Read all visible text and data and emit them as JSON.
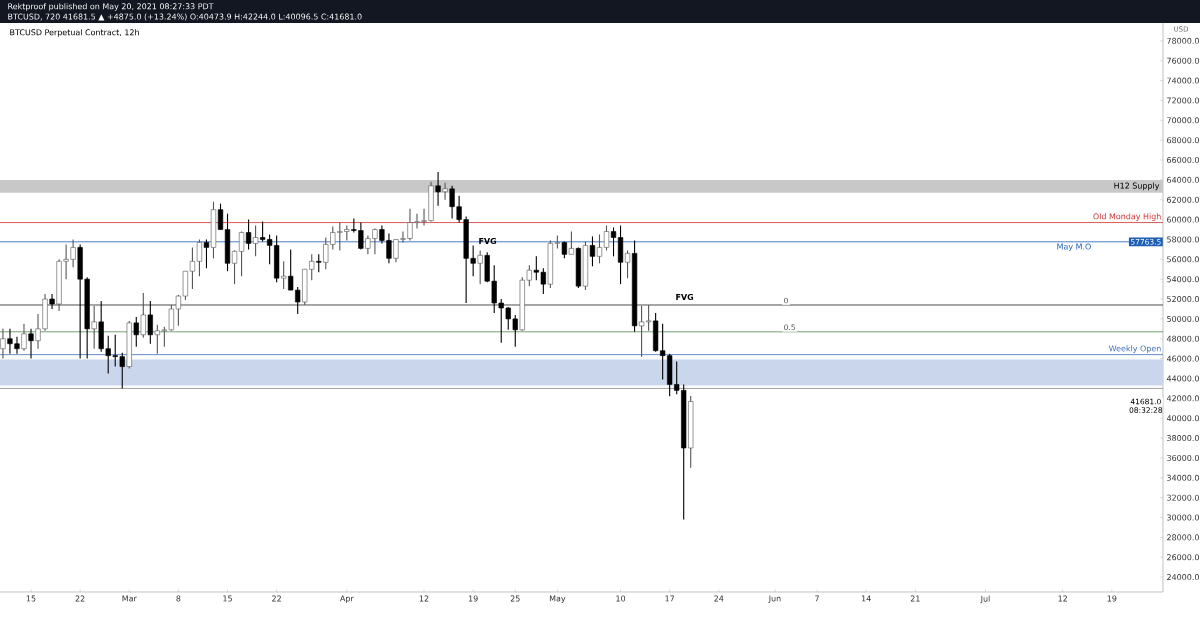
{
  "chart_data": {
    "type": "candlestick",
    "title": "BTCUSD Perpetual Contract, 12h",
    "x": [
      "2021-02-11",
      "2021-02-12",
      "2021-02-13",
      "2021-02-14",
      "2021-02-15",
      "2021-02-16",
      "2021-02-17",
      "2021-02-18",
      "2021-02-19",
      "2021-02-20",
      "2021-02-21",
      "2021-02-22",
      "2021-02-23",
      "2021-02-24",
      "2021-02-25",
      "2021-02-26",
      "2021-02-27",
      "2021-02-28",
      "2021-03-01",
      "2021-03-02",
      "2021-03-03",
      "2021-03-04",
      "2021-03-05",
      "2021-03-06",
      "2021-03-07",
      "2021-03-08",
      "2021-03-09",
      "2021-03-10",
      "2021-03-11",
      "2021-03-12",
      "2021-03-13",
      "2021-03-14",
      "2021-03-15",
      "2021-03-16",
      "2021-03-17",
      "2021-03-18",
      "2021-03-19",
      "2021-03-20",
      "2021-03-21",
      "2021-03-22",
      "2021-03-23",
      "2021-03-24",
      "2021-03-25",
      "2021-03-26",
      "2021-03-27",
      "2021-03-28",
      "2021-03-29",
      "2021-03-30",
      "2021-03-31",
      "2021-04-01",
      "2021-04-02",
      "2021-04-03",
      "2021-04-04",
      "2021-04-05",
      "2021-04-06",
      "2021-04-07",
      "2021-04-08",
      "2021-04-09",
      "2021-04-10",
      "2021-04-11",
      "2021-04-12",
      "2021-04-13",
      "2021-04-14",
      "2021-04-15",
      "2021-04-16",
      "2021-04-17",
      "2021-04-18",
      "2021-04-19",
      "2021-04-20",
      "2021-04-21",
      "2021-04-22",
      "2021-04-23",
      "2021-04-24",
      "2021-04-25",
      "2021-04-26",
      "2021-04-27",
      "2021-04-28",
      "2021-04-29",
      "2021-04-30",
      "2021-05-01",
      "2021-05-02",
      "2021-05-03",
      "2021-05-04",
      "2021-05-05",
      "2021-05-06",
      "2021-05-07",
      "2021-05-08",
      "2021-05-09",
      "2021-05-10",
      "2021-05-11",
      "2021-05-12",
      "2021-05-13",
      "2021-05-14",
      "2021-05-15",
      "2021-05-16",
      "2021-05-17",
      "2021-05-18",
      "2021-05-19",
      "2021-05-20"
    ],
    "ohlc": [
      [
        47000,
        49000,
        46000,
        48000
      ],
      [
        48000,
        49000,
        46500,
        47500
      ],
      [
        47500,
        48200,
        46500,
        47000
      ],
      [
        47000,
        49500,
        46800,
        48500
      ],
      [
        48500,
        49000,
        46000,
        47800
      ],
      [
        47800,
        50500,
        47000,
        49000
      ],
      [
        49000,
        52500,
        48800,
        52000
      ],
      [
        52000,
        52500,
        51000,
        51500
      ],
      [
        51500,
        56000,
        50800,
        55800
      ],
      [
        55800,
        57500,
        54000,
        56000
      ],
      [
        56000,
        58000,
        55200,
        57200
      ],
      [
        57200,
        57500,
        46000,
        54000
      ],
      [
        54000,
        54200,
        46000,
        49000
      ],
      [
        49000,
        51300,
        47000,
        49700
      ],
      [
        49700,
        51800,
        46700,
        47000
      ],
      [
        47000,
        48300,
        44500,
        46300
      ],
      [
        46300,
        48400,
        45200,
        46200
      ],
      [
        46200,
        46600,
        43000,
        45200
      ],
      [
        45200,
        49800,
        45000,
        49600
      ],
      [
        49600,
        50200,
        47200,
        48400
      ],
      [
        48400,
        52600,
        48100,
        50400
      ],
      [
        50400,
        51800,
        47500,
        48400
      ],
      [
        48400,
        49400,
        46500,
        48800
      ],
      [
        48800,
        49200,
        47200,
        48900
      ],
      [
        48900,
        51400,
        48800,
        51000
      ],
      [
        51000,
        52400,
        49300,
        52300
      ],
      [
        52300,
        54800,
        51900,
        54800
      ],
      [
        54800,
        57200,
        53000,
        55800
      ],
      [
        55800,
        58000,
        54300,
        57700
      ],
      [
        57700,
        58000,
        55100,
        57200
      ],
      [
        57200,
        61800,
        56100,
        61000
      ],
      [
        61000,
        61600,
        59000,
        59000
      ],
      [
        59000,
        60600,
        54800,
        55600
      ],
      [
        55600,
        56900,
        53500,
        56800
      ],
      [
        56800,
        58800,
        54300,
        58700
      ],
      [
        58700,
        60000,
        57000,
        57600
      ],
      [
        57600,
        59400,
        56300,
        58200
      ],
      [
        58200,
        59800,
        57800,
        58000
      ],
      [
        58000,
        58500,
        55500,
        57400
      ],
      [
        57400,
        58400,
        53700,
        54100
      ],
      [
        54100,
        55800,
        53000,
        54300
      ],
      [
        54300,
        57000,
        52900,
        52900
      ],
      [
        52900,
        53200,
        50500,
        51700
      ],
      [
        51700,
        55000,
        51400,
        55000
      ],
      [
        55000,
        56500,
        53900,
        55800
      ],
      [
        55800,
        56500,
        54700,
        55700
      ],
      [
        55700,
        58200,
        55000,
        57500
      ],
      [
        57500,
        59300,
        57000,
        58700
      ],
      [
        58700,
        59700,
        56900,
        58800
      ],
      [
        58800,
        59400,
        57900,
        59000
      ],
      [
        59000,
        60100,
        58700,
        58900
      ],
      [
        58900,
        59700,
        57000,
        57100
      ],
      [
        57100,
        58400,
        56500,
        58100
      ],
      [
        58100,
        59100,
        56500,
        59000
      ],
      [
        59000,
        59400,
        57600,
        57900
      ],
      [
        57900,
        58600,
        55600,
        56100
      ],
      [
        56100,
        58000,
        55700,
        58000
      ],
      [
        58000,
        58800,
        57700,
        58100
      ],
      [
        58100,
        61100,
        57900,
        59700
      ],
      [
        59700,
        60600,
        59100,
        59800
      ],
      [
        59800,
        61100,
        59400,
        59900
      ],
      [
        59900,
        63800,
        59800,
        63400
      ],
      [
        63400,
        64800,
        61400,
        62800
      ],
      [
        62800,
        63700,
        62000,
        63100
      ],
      [
        63100,
        63400,
        60100,
        61300
      ],
      [
        61300,
        62400,
        59700,
        60000
      ],
      [
        60000,
        60300,
        51600,
        56100
      ],
      [
        56100,
        57400,
        54300,
        55600
      ],
      [
        55600,
        56900,
        53500,
        56400
      ],
      [
        56400,
        56700,
        53700,
        53800
      ],
      [
        53800,
        55400,
        50600,
        51600
      ],
      [
        51600,
        52000,
        47600,
        51100
      ],
      [
        51100,
        51200,
        48900,
        50000
      ],
      [
        50000,
        50400,
        47200,
        48900
      ],
      [
        48900,
        54200,
        48800,
        53900
      ],
      [
        53900,
        55400,
        53300,
        54900
      ],
      [
        54900,
        56300,
        53900,
        54700
      ],
      [
        54700,
        55100,
        52500,
        53500
      ],
      [
        53500,
        57900,
        53100,
        57600
      ],
      [
        57600,
        58400,
        57100,
        57700
      ],
      [
        57700,
        57800,
        56100,
        56500
      ],
      [
        56500,
        58800,
        56500,
        57100
      ],
      [
        57100,
        57200,
        53100,
        53300
      ],
      [
        53300,
        57800,
        52900,
        57400
      ],
      [
        57400,
        58300,
        55300,
        56300
      ],
      [
        56300,
        58500,
        55600,
        57200
      ],
      [
        57200,
        59400,
        56900,
        58800
      ],
      [
        58800,
        59200,
        56300,
        58200
      ],
      [
        58200,
        59400,
        53500,
        55700
      ],
      [
        55700,
        56900,
        54100,
        56600
      ],
      [
        56600,
        57900,
        48700,
        49300
      ],
      [
        49300,
        51300,
        46200,
        49700
      ],
      [
        49700,
        51400,
        48800,
        49800
      ],
      [
        49800,
        50600,
        46700,
        46800
      ],
      [
        46800,
        49500,
        43900,
        46300
      ],
      [
        46300,
        46500,
        42200,
        43400
      ],
      [
        43400,
        45700,
        42400,
        42800
      ],
      [
        42800,
        43400,
        29800,
        37000
      ],
      [
        37000,
        42244,
        35000,
        41681
      ]
    ],
    "xlim": [
      "2021-02-10T14:00",
      "2021-07-26T07:00"
    ],
    "xticks": [
      {
        "value": "2021-02-15",
        "label": "15"
      },
      {
        "value": "2021-02-22",
        "label": "22"
      },
      {
        "value": "2021-03-01",
        "label": "Mar"
      },
      {
        "value": "2021-03-08",
        "label": "8"
      },
      {
        "value": "2021-03-15",
        "label": "15"
      },
      {
        "value": "2021-03-22",
        "label": "22"
      },
      {
        "value": "2021-04-01",
        "label": "Apr"
      },
      {
        "value": "2021-04-12",
        "label": "12"
      },
      {
        "value": "2021-04-19",
        "label": "19"
      },
      {
        "value": "2021-04-25",
        "label": "25"
      },
      {
        "value": "2021-05-01",
        "label": "May"
      },
      {
        "value": "2021-05-10",
        "label": "10"
      },
      {
        "value": "2021-05-17",
        "label": "17"
      },
      {
        "value": "2021-05-24",
        "label": "24"
      },
      {
        "value": "2021-06-01",
        "label": "Jun"
      },
      {
        "value": "2021-06-07",
        "label": "7"
      },
      {
        "value": "2021-06-14",
        "label": "14"
      },
      {
        "value": "2021-06-21",
        "label": "21"
      },
      {
        "value": "2021-07-01",
        "label": "Jul"
      },
      {
        "value": "2021-07-12",
        "label": "12"
      },
      {
        "value": "2021-07-19",
        "label": "19"
      }
    ],
    "ylim": [
      22500,
      79900
    ],
    "yticks": [
      {
        "value": 24000,
        "label": "24000.0"
      },
      {
        "value": 26000,
        "label": "26000.0"
      },
      {
        "value": 28000,
        "label": "28000.0"
      },
      {
        "value": 30000,
        "label": "30000.0"
      },
      {
        "value": 32000,
        "label": "32000.0"
      },
      {
        "value": 34000,
        "label": "34000.0"
      },
      {
        "value": 36000,
        "label": "36000.0"
      },
      {
        "value": 38000,
        "label": "38000.0"
      },
      {
        "value": 40000,
        "label": "40000.0"
      },
      {
        "value": 42000,
        "label": "42000.0"
      },
      {
        "value": 44000,
        "label": "44000.0"
      },
      {
        "value": 46000,
        "label": "46000.0"
      },
      {
        "value": 48000,
        "label": "48000.0"
      },
      {
        "value": 50000,
        "label": "50000.0"
      },
      {
        "value": 52000,
        "label": "52000.0"
      },
      {
        "value": 54000,
        "label": "54000.0"
      },
      {
        "value": 56000,
        "label": "56000.0"
      },
      {
        "value": 58000,
        "label": "58000.0"
      },
      {
        "value": 60000,
        "label": "60000.0"
      },
      {
        "value": 62000,
        "label": "62000.0"
      },
      {
        "value": 64000,
        "label": "64000.0"
      },
      {
        "value": 66000,
        "label": "66000.0"
      },
      {
        "value": 68000,
        "label": "68000.0"
      },
      {
        "value": 70000,
        "label": "70000.0"
      },
      {
        "value": 72000,
        "label": "72000.0"
      },
      {
        "value": 74000,
        "label": "74000.0"
      },
      {
        "value": 76000,
        "label": "76000.0"
      },
      {
        "value": 78000,
        "label": "78000.0"
      }
    ],
    "bands": [
      {
        "axis": "y",
        "from": 62700,
        "to": 64000,
        "label": "H12 Supply",
        "color": "#c8c8c8"
      },
      {
        "axis": "y",
        "from": 43300,
        "to": 45900,
        "color": "#c9d6ec"
      }
    ],
    "ref_lines": [
      {
        "axis": "y",
        "value": 59700,
        "label": "Old Monday High",
        "color": "#d32f2f"
      },
      {
        "axis": "y",
        "value": 57763.5,
        "label": "May M.O",
        "color": "#1e5fb4"
      },
      {
        "axis": "y",
        "value": 51400,
        "color": "#222222"
      },
      {
        "axis": "y",
        "value": 48700,
        "color": "#4e8a4e"
      },
      {
        "axis": "y",
        "value": 46400,
        "label": "Weekly Open",
        "color": "#3f6fbf"
      },
      {
        "axis": "y",
        "value": 43000,
        "color": "#888888"
      }
    ],
    "annotations": [
      "Rektproof published on May 20, 2021 08:27:33 PDT",
      "BTCUSD, 720 41681.5 ▲ +4875.0 (+13.24%) O:40473.9 H:42244.0 L:40096.5 C:41681.0",
      "USD",
      "08:32:28",
      "FVG",
      "FVG",
      "57763.5",
      "41681.0",
      "0",
      "0.5"
    ]
  }
}
